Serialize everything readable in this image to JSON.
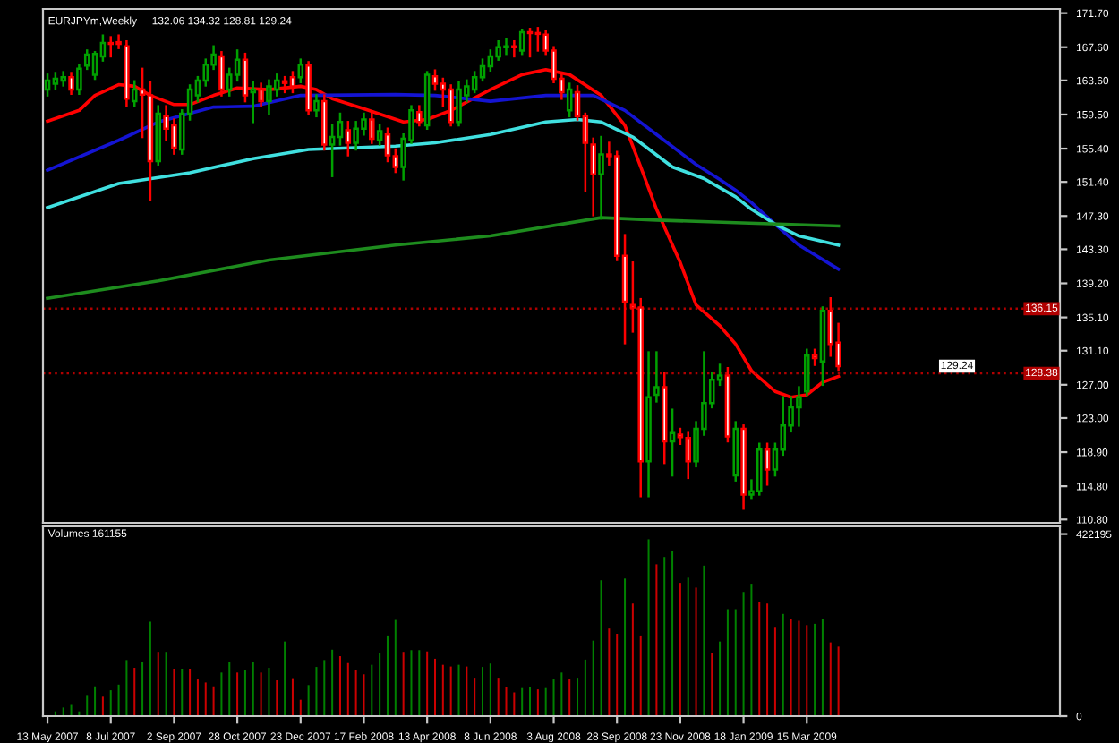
{
  "chart_data": [
    {
      "type": "candlestick",
      "title": "EURJPYm,Weekly",
      "subtitle": "132.06 134.32 128.81 129.24",
      "x": [
        "2007-05-13",
        "2007-05-20",
        "2007-05-27",
        "2007-06-03",
        "2007-06-10",
        "2007-06-17",
        "2007-06-24",
        "2007-07-01",
        "2007-07-08",
        "2007-07-15",
        "2007-07-22",
        "2007-07-29",
        "2007-08-05",
        "2007-08-12",
        "2007-08-19",
        "2007-08-26",
        "2007-09-02",
        "2007-09-09",
        "2007-09-16",
        "2007-09-23",
        "2007-09-30",
        "2007-10-07",
        "2007-10-14",
        "2007-10-21",
        "2007-10-28",
        "2007-11-04",
        "2007-11-11",
        "2007-11-18",
        "2007-11-25",
        "2007-12-02",
        "2007-12-09",
        "2007-12-16",
        "2007-12-23",
        "2007-12-30",
        "2008-01-06",
        "2008-01-13",
        "2008-01-20",
        "2008-01-27",
        "2008-02-03",
        "2008-02-10",
        "2008-02-17",
        "2008-02-24",
        "2008-03-02",
        "2008-03-09",
        "2008-03-16",
        "2008-03-23",
        "2008-03-30",
        "2008-04-06",
        "2008-04-13",
        "2008-04-20",
        "2008-04-27",
        "2008-05-04",
        "2008-05-11",
        "2008-05-18",
        "2008-05-25",
        "2008-06-01",
        "2008-06-08",
        "2008-06-15",
        "2008-06-22",
        "2008-06-29",
        "2008-07-06",
        "2008-07-13",
        "2008-07-20",
        "2008-07-27",
        "2008-08-03",
        "2008-08-10",
        "2008-08-17",
        "2008-08-24",
        "2008-08-31",
        "2008-09-07",
        "2008-09-14",
        "2008-09-21",
        "2008-09-28",
        "2008-10-05",
        "2008-10-12",
        "2008-10-19",
        "2008-10-26",
        "2008-11-02",
        "2008-11-09",
        "2008-11-16",
        "2008-11-23",
        "2008-11-30",
        "2008-12-07",
        "2008-12-14",
        "2008-12-21",
        "2008-12-28",
        "2009-01-04",
        "2009-01-11",
        "2009-01-18",
        "2009-01-25",
        "2009-02-01",
        "2009-02-08",
        "2009-02-15",
        "2009-02-22",
        "2009-03-01",
        "2009-03-08",
        "2009-03-15",
        "2009-03-22",
        "2009-03-29",
        "2009-04-05",
        "2009-04-12"
      ],
      "ohlc": [
        [
          162.5,
          164.3,
          161.8,
          163.6
        ],
        [
          163.2,
          164.5,
          162.6,
          163.8
        ],
        [
          163.6,
          164.6,
          163.0,
          164.0
        ],
        [
          164.0,
          164.5,
          162.0,
          162.5
        ],
        [
          162.5,
          165.5,
          162.0,
          165.0
        ],
        [
          165.4,
          167.2,
          165.0,
          166.7
        ],
        [
          164.3,
          167.0,
          163.8,
          166.8
        ],
        [
          166.5,
          169.0,
          166.0,
          168.1
        ],
        [
          168.1,
          168.8,
          166.5,
          168.0
        ],
        [
          168.2,
          169.0,
          167.5,
          168.0
        ],
        [
          167.7,
          168.3,
          160.5,
          161.4
        ],
        [
          161.1,
          163.5,
          160.5,
          162.5
        ],
        [
          162.5,
          165.0,
          156.8,
          161.9
        ],
        [
          161.8,
          163.4,
          149.2,
          153.9
        ],
        [
          153.9,
          160.5,
          153.5,
          159.6
        ],
        [
          159.3,
          160.5,
          156.5,
          157.8
        ],
        [
          158.2,
          158.9,
          154.8,
          155.5
        ],
        [
          155.3,
          160.0,
          154.8,
          159.6
        ],
        [
          159.6,
          163.0,
          158.9,
          162.5
        ],
        [
          161.8,
          164.0,
          161.1,
          163.6
        ],
        [
          163.6,
          166.1,
          163.0,
          165.5
        ],
        [
          165.5,
          167.7,
          165.0,
          166.7
        ],
        [
          166.5,
          167.0,
          161.8,
          162.5
        ],
        [
          162.5,
          165.0,
          161.8,
          164.3
        ],
        [
          164.3,
          167.2,
          163.6,
          166.1
        ],
        [
          166.1,
          166.8,
          161.1,
          161.8
        ],
        [
          162.2,
          163.4,
          158.6,
          162.5
        ],
        [
          162.5,
          163.2,
          160.5,
          161.1
        ],
        [
          161.1,
          163.6,
          159.6,
          162.9
        ],
        [
          162.5,
          164.3,
          161.8,
          163.6
        ],
        [
          163.5,
          164.0,
          162.2,
          163.3
        ],
        [
          164.0,
          164.6,
          162.2,
          162.9
        ],
        [
          164.0,
          166.1,
          163.4,
          165.5
        ],
        [
          165.4,
          165.8,
          159.6,
          160.0
        ],
        [
          160.0,
          161.8,
          159.3,
          161.1
        ],
        [
          161.1,
          161.8,
          155.3,
          155.9
        ],
        [
          155.9,
          158.2,
          152.1,
          156.8
        ],
        [
          156.8,
          159.6,
          155.9,
          158.6
        ],
        [
          157.6,
          158.6,
          154.6,
          156.1
        ],
        [
          156.1,
          158.6,
          155.3,
          157.8
        ],
        [
          157.8,
          159.6,
          157.1,
          158.9
        ],
        [
          158.9,
          159.6,
          156.1,
          156.6
        ],
        [
          156.4,
          158.2,
          155.9,
          157.5
        ],
        [
          157.1,
          157.8,
          153.9,
          154.6
        ],
        [
          154.5,
          155.3,
          152.6,
          153.2
        ],
        [
          153.2,
          157.1,
          151.7,
          156.6
        ],
        [
          156.4,
          160.5,
          156.1,
          160.0
        ],
        [
          159.8,
          160.5,
          158.2,
          158.6
        ],
        [
          158.2,
          164.6,
          157.8,
          164.3
        ],
        [
          164.1,
          164.8,
          162.5,
          163.2
        ],
        [
          163.2,
          163.8,
          160.5,
          162.5
        ],
        [
          162.5,
          163.0,
          158.2,
          158.6
        ],
        [
          158.6,
          163.4,
          158.2,
          162.5
        ],
        [
          161.8,
          163.6,
          161.1,
          162.9
        ],
        [
          162.5,
          164.6,
          162.2,
          164.0
        ],
        [
          164.0,
          166.1,
          163.6,
          165.3
        ],
        [
          165.3,
          167.2,
          164.8,
          166.5
        ],
        [
          166.5,
          168.3,
          166.1,
          167.6
        ],
        [
          167.6,
          168.6,
          166.8,
          167.7
        ],
        [
          167.7,
          168.3,
          166.5,
          167.6
        ],
        [
          167.2,
          169.7,
          166.8,
          169.4
        ],
        [
          169.4,
          169.8,
          166.5,
          169.3
        ],
        [
          169.3,
          169.9,
          167.2,
          169.2
        ],
        [
          169.1,
          169.5,
          166.8,
          167.2
        ],
        [
          167.2,
          167.6,
          163.4,
          163.8
        ],
        [
          163.8,
          164.3,
          161.4,
          162.2
        ],
        [
          160.0,
          163.2,
          159.3,
          162.5
        ],
        [
          162.2,
          162.9,
          158.9,
          159.3
        ],
        [
          159.3,
          159.6,
          150.3,
          156.1
        ],
        [
          155.9,
          156.6,
          147.4,
          152.3
        ],
        [
          152.3,
          156.8,
          147.0,
          154.7
        ],
        [
          154.7,
          156.1,
          153.5,
          154.5
        ],
        [
          154.5,
          155.0,
          142.0,
          142.5
        ],
        [
          142.5,
          145.0,
          132.0,
          137.0
        ],
        [
          136.6,
          141.7,
          133.4,
          136.3
        ],
        [
          136.3,
          137.3,
          113.6,
          117.8
        ],
        [
          117.8,
          130.9,
          113.6,
          125.5
        ],
        [
          125.8,
          130.9,
          125.0,
          126.7
        ],
        [
          126.7,
          128.4,
          117.6,
          120.2
        ],
        [
          120.2,
          124.0,
          116.1,
          121.2
        ],
        [
          121.0,
          121.7,
          119.9,
          120.7
        ],
        [
          120.6,
          121.2,
          115.8,
          117.8
        ],
        [
          117.8,
          122.5,
          117.2,
          121.7
        ],
        [
          121.7,
          130.9,
          121.0,
          124.8
        ],
        [
          124.8,
          128.4,
          124.3,
          127.6
        ],
        [
          127.6,
          129.4,
          127.0,
          128.1
        ],
        [
          128.1,
          129.0,
          120.2,
          120.8
        ],
        [
          116.1,
          122.5,
          115.5,
          121.7
        ],
        [
          121.7,
          122.1,
          112.1,
          113.8
        ],
        [
          113.8,
          115.5,
          113.4,
          114.2
        ],
        [
          114.2,
          119.9,
          113.8,
          119.2
        ],
        [
          119.2,
          119.9,
          115.0,
          116.8
        ],
        [
          116.8,
          119.9,
          116.1,
          119.2
        ],
        [
          119.2,
          125.5,
          118.6,
          122.1
        ],
        [
          122.1,
          125.5,
          121.4,
          124.3
        ],
        [
          124.3,
          126.7,
          122.1,
          125.5
        ],
        [
          126.2,
          131.2,
          125.8,
          130.5
        ],
        [
          130.5,
          131.2,
          129.4,
          130.2
        ],
        [
          129.8,
          136.3,
          127.0,
          135.9
        ],
        [
          135.9,
          137.4,
          130.5,
          131.9
        ],
        [
          132.06,
          134.32,
          128.81,
          129.24
        ]
      ],
      "colors": [
        "#00a000",
        "#00a000",
        "#00a000",
        "#ff0000",
        "#00a000",
        "#00a000",
        "#00a000",
        "#00a000",
        "#ff0000",
        "#ff0000",
        "#ff0000",
        "#00a000",
        "#ff0000",
        "#ff0000",
        "#00a000",
        "#ff0000",
        "#ff0000",
        "#00a000",
        "#00a000",
        "#00a000",
        "#00a000",
        "#00a000",
        "#ff0000",
        "#00a000",
        "#00a000",
        "#ff0000",
        "#00a000",
        "#ff0000",
        "#00a000",
        "#00a000",
        "#ff0000",
        "#ff0000",
        "#00a000",
        "#ff0000",
        "#00a000",
        "#ff0000",
        "#00a000",
        "#00a000",
        "#ff0000",
        "#00a000",
        "#00a000",
        "#ff0000",
        "#00a000",
        "#ff0000",
        "#ff0000",
        "#00a000",
        "#00a000",
        "#ff0000",
        "#00a000",
        "#ff0000",
        "#ff0000",
        "#ff0000",
        "#00a000",
        "#00a000",
        "#00a000",
        "#00a000",
        "#00a000",
        "#00a000",
        "#00a000",
        "#ff0000",
        "#00a000",
        "#ff0000",
        "#ff0000",
        "#ff0000",
        "#ff0000",
        "#ff0000",
        "#00a000",
        "#ff0000",
        "#ff0000",
        "#ff0000",
        "#00a000",
        "#ff0000",
        "#ff0000",
        "#ff0000",
        "#ff0000",
        "#ff0000",
        "#00a000",
        "#00a000",
        "#ff0000",
        "#00a000",
        "#ff0000",
        "#ff0000",
        "#00a000",
        "#00a000",
        "#00a000",
        "#00a000",
        "#ff0000",
        "#00a000",
        "#ff0000",
        "#00a000",
        "#00a000",
        "#ff0000",
        "#00a000",
        "#00a000",
        "#00a000",
        "#00a000",
        "#00a000",
        "#ff0000",
        "#00a000",
        "#ff0000",
        "#ff0000"
      ],
      "series": [
        {
          "type": "line",
          "color": "#ff0000",
          "x": [
            "2007-05-13",
            "2007-06-10",
            "2007-06-24",
            "2007-07-15",
            "2007-07-29",
            "2007-08-12",
            "2007-09-02",
            "2007-09-16",
            "2007-10-07",
            "2007-10-28",
            "2007-11-25",
            "2007-12-23",
            "2008-01-06",
            "2008-01-20",
            "2008-02-17",
            "2008-03-23",
            "2008-04-13",
            "2008-05-04",
            "2008-06-08",
            "2008-07-06",
            "2008-07-27",
            "2008-08-17",
            "2008-09-14",
            "2008-10-05",
            "2008-10-19",
            "2008-11-02",
            "2008-11-23",
            "2008-12-07",
            "2008-12-28",
            "2009-01-11",
            "2009-01-25",
            "2009-02-15",
            "2009-03-01",
            "2009-03-15",
            "2009-03-29",
            "2009-04-12"
          ],
          "values": [
            158.7,
            160.0,
            161.8,
            163.1,
            162.9,
            161.8,
            160.7,
            160.7,
            161.8,
            162.7,
            162.5,
            162.9,
            162.5,
            161.4,
            160.2,
            158.6,
            158.9,
            160.0,
            162.5,
            164.3,
            164.9,
            164.3,
            161.8,
            158.2,
            153.2,
            148.1,
            141.7,
            136.6,
            134.1,
            131.9,
            128.7,
            126.2,
            125.5,
            125.8,
            127.3,
            128.0
          ]
        },
        {
          "type": "line",
          "color": "#1414d2",
          "x": [
            "2007-05-13",
            "2007-07-15",
            "2007-08-19",
            "2007-10-07",
            "2007-11-11",
            "2007-12-23",
            "2008-03-16",
            "2008-04-20",
            "2008-06-08",
            "2008-07-27",
            "2008-09-07",
            "2008-10-05",
            "2008-11-02",
            "2008-12-07",
            "2008-12-28",
            "2009-01-11",
            "2009-01-25",
            "2009-02-15",
            "2009-03-08",
            "2009-04-12"
          ],
          "values": [
            152.8,
            156.4,
            158.6,
            160.4,
            160.5,
            161.8,
            161.9,
            161.8,
            161.1,
            161.8,
            161.8,
            160.0,
            157.1,
            153.5,
            151.7,
            150.4,
            148.9,
            146.3,
            143.8,
            140.9
          ]
        },
        {
          "type": "line",
          "color": "#40e0e0",
          "x": [
            "2007-05-13",
            "2007-07-15",
            "2007-09-16",
            "2007-11-11",
            "2007-12-30",
            "2008-03-16",
            "2008-04-20",
            "2008-06-08",
            "2008-07-27",
            "2008-08-24",
            "2008-09-14",
            "2008-10-12",
            "2008-11-16",
            "2008-12-14",
            "2009-01-11",
            "2009-01-25",
            "2009-02-15",
            "2009-03-08",
            "2009-04-12"
          ],
          "values": [
            148.3,
            151.2,
            152.5,
            154.2,
            155.3,
            155.7,
            156.1,
            157.1,
            158.6,
            158.9,
            158.6,
            156.8,
            153.2,
            151.8,
            149.6,
            148.1,
            146.3,
            144.9,
            143.8
          ]
        },
        {
          "type": "line",
          "color": "#1e8c1e",
          "x": [
            "2007-05-13",
            "2007-08-19",
            "2007-11-25",
            "2008-03-16",
            "2008-06-08",
            "2008-09-14",
            "2008-11-02",
            "2009-01-11",
            "2009-04-12"
          ],
          "values": [
            137.4,
            139.5,
            142.0,
            143.8,
            144.9,
            147.1,
            146.8,
            146.5,
            146.1
          ]
        }
      ],
      "xlim": [
        "2007-05-09",
        "2009-10-25"
      ],
      "ylim": [
        110.4,
        172.2
      ],
      "yticks": [
        {
          "value": 171.7,
          "label": "171.70"
        },
        {
          "value": 167.6,
          "label": "167.60"
        },
        {
          "value": 163.6,
          "label": "163.60"
        },
        {
          "value": 159.5,
          "label": "159.50"
        },
        {
          "value": 155.4,
          "label": "155.40"
        },
        {
          "value": 151.4,
          "label": "151.40"
        },
        {
          "value": 147.3,
          "label": "147.30"
        },
        {
          "value": 143.3,
          "label": "143.30"
        },
        {
          "value": 139.2,
          "label": "139.20"
        },
        {
          "value": 135.1,
          "label": "135.10"
        },
        {
          "value": 131.1,
          "label": "131.10"
        },
        {
          "value": 127.0,
          "label": "127.00"
        },
        {
          "value": 123.0,
          "label": "123.00"
        },
        {
          "value": 118.9,
          "label": "118.90"
        },
        {
          "value": 114.8,
          "label": "114.80"
        },
        {
          "value": 110.8,
          "label": "110.80"
        }
      ],
      "tick_labels": "y",
      "ref_lines": [
        {
          "axis": "y",
          "value": 136.15,
          "label": "136.15",
          "color": "#b00000",
          "line_style": "dotted"
        },
        {
          "axis": "y",
          "value": 128.38,
          "label": "128.38",
          "color": "#b00000",
          "line_style": "dotted"
        }
      ],
      "annotations": [
        {
          "text": "129.24",
          "y": 129.24
        }
      ]
    },
    {
      "type": "bar",
      "title": "Volumes 161155",
      "x": [
        "2007-05-20",
        "2007-05-27",
        "2007-06-03",
        "2007-06-10",
        "2007-06-17",
        "2007-06-24",
        "2007-07-01",
        "2007-07-08",
        "2007-07-15",
        "2007-07-22",
        "2007-07-29",
        "2007-08-05",
        "2007-08-12",
        "2007-08-19",
        "2007-08-26",
        "2007-09-02",
        "2007-09-09",
        "2007-09-16",
        "2007-09-23",
        "2007-09-30",
        "2007-10-07",
        "2007-10-14",
        "2007-10-21",
        "2007-10-28",
        "2007-11-04",
        "2007-11-11",
        "2007-11-18",
        "2007-11-25",
        "2007-12-02",
        "2007-12-09",
        "2007-12-16",
        "2007-12-23",
        "2007-12-30",
        "2008-01-06",
        "2008-01-13",
        "2008-01-20",
        "2008-01-27",
        "2008-02-03",
        "2008-02-10",
        "2008-02-17",
        "2008-02-24",
        "2008-03-02",
        "2008-03-09",
        "2008-03-16",
        "2008-03-23",
        "2008-03-30",
        "2008-04-06",
        "2008-04-13",
        "2008-04-20",
        "2008-04-27",
        "2008-05-04",
        "2008-05-11",
        "2008-05-18",
        "2008-05-25",
        "2008-06-01",
        "2008-06-08",
        "2008-06-15",
        "2008-06-22",
        "2008-06-29",
        "2008-07-06",
        "2008-07-13",
        "2008-07-20",
        "2008-07-27",
        "2008-08-03",
        "2008-08-10",
        "2008-08-17",
        "2008-08-24",
        "2008-08-31",
        "2008-09-07",
        "2008-09-14",
        "2008-09-21",
        "2008-09-28",
        "2008-10-05",
        "2008-10-12",
        "2008-10-19",
        "2008-10-26",
        "2008-11-02",
        "2008-11-09",
        "2008-11-16",
        "2008-11-23",
        "2008-11-30",
        "2008-12-07",
        "2008-12-14",
        "2008-12-21",
        "2008-12-28",
        "2009-01-04",
        "2009-01-11",
        "2009-01-18",
        "2009-01-25",
        "2009-02-01",
        "2009-02-08",
        "2009-02-15",
        "2009-02-22",
        "2009-03-01",
        "2009-03-08",
        "2009-03-15",
        "2009-03-22",
        "2009-03-29",
        "2009-04-05",
        "2009-04-12"
      ],
      "values": [
        11000,
        20000,
        28000,
        11000,
        49000,
        69000,
        45000,
        60000,
        73000,
        130000,
        112000,
        126000,
        219000,
        149000,
        149000,
        110000,
        110000,
        110000,
        85000,
        78000,
        69000,
        101000,
        126000,
        101000,
        106000,
        126000,
        101000,
        112000,
        83000,
        173000,
        88000,
        38000,
        72000,
        114000,
        130000,
        154000,
        139000,
        123000,
        107000,
        97000,
        119000,
        146000,
        187000,
        223000,
        149000,
        153000,
        153000,
        150000,
        133000,
        119000,
        115000,
        119000,
        115000,
        89000,
        114000,
        122000,
        89000,
        68000,
        55000,
        65000,
        68000,
        62000,
        65000,
        85000,
        101000,
        85000,
        89000,
        131000,
        175000,
        315000,
        203000,
        191000,
        319000,
        261000,
        187000,
        410000,
        352000,
        369000,
        382000,
        309000,
        321000,
        298000,
        349000,
        146000,
        173000,
        248000,
        248000,
        288000,
        307000,
        265000,
        261000,
        207000,
        237000,
        225000,
        221000,
        211000,
        214000,
        226000,
        171000,
        161155
      ],
      "colors": [
        "#008000",
        "#008000",
        "#008000",
        "#008000",
        "#008000",
        "#008000",
        "#cc0000",
        "#008000",
        "#008000",
        "#008000",
        "#cc0000",
        "#008000",
        "#008000",
        "#cc0000",
        "#008000",
        "#cc0000",
        "#008000",
        "#cc0000",
        "#cc0000",
        "#cc0000",
        "#cc0000",
        "#008000",
        "#008000",
        "#cc0000",
        "#008000",
        "#008000",
        "#cc0000",
        "#008000",
        "#cc0000",
        "#008000",
        "#cc0000",
        "#cc0000",
        "#008000",
        "#008000",
        "#008000",
        "#008000",
        "#cc0000",
        "#cc0000",
        "#cc0000",
        "#cc0000",
        "#008000",
        "#008000",
        "#008000",
        "#008000",
        "#cc0000",
        "#008000",
        "#008000",
        "#cc0000",
        "#cc0000",
        "#cc0000",
        "#cc0000",
        "#008000",
        "#cc0000",
        "#cc0000",
        "#008000",
        "#008000",
        "#cc0000",
        "#cc0000",
        "#cc0000",
        "#008000",
        "#008000",
        "#cc0000",
        "#008000",
        "#008000",
        "#008000",
        "#cc0000",
        "#008000",
        "#008000",
        "#008000",
        "#008000",
        "#cc0000",
        "#cc0000",
        "#008000",
        "#cc0000",
        "#cc0000",
        "#008000",
        "#cc0000",
        "#008000",
        "#008000",
        "#cc0000",
        "#008000",
        "#cc0000",
        "#008000",
        "#cc0000",
        "#008000",
        "#008000",
        "#008000",
        "#008000",
        "#008000",
        "#cc0000",
        "#cc0000",
        "#cc0000",
        "#008000",
        "#cc0000",
        "#cc0000",
        "#cc0000",
        "#008000",
        "#008000",
        "#cc0000",
        "#cc0000"
      ],
      "xlim": [
        "2007-05-09",
        "2009-10-25"
      ],
      "ylim": [
        0,
        440000
      ],
      "yticks": [
        0,
        422195
      ],
      "xticks": [
        {
          "value": "2007-05-13",
          "label": "13 May 2007"
        },
        {
          "value": "2007-07-08",
          "label": "8 Jul 2007"
        },
        {
          "value": "2007-09-02",
          "label": "2 Sep 2007"
        },
        {
          "value": "2007-10-28",
          "label": "28 Oct 2007"
        },
        {
          "value": "2007-12-23",
          "label": "23 Dec 2007"
        },
        {
          "value": "2008-02-17",
          "label": "17 Feb 2008"
        },
        {
          "value": "2008-04-13",
          "label": "13 Apr 2008"
        },
        {
          "value": "2008-06-08",
          "label": "8 Jun 2008"
        },
        {
          "value": "2008-08-03",
          "label": "3 Aug 2008"
        },
        {
          "value": "2008-09-28",
          "label": "28 Sep 2008"
        },
        {
          "value": "2008-11-23",
          "label": "23 Nov 2008"
        },
        {
          "value": "2009-01-18",
          "label": "18 Jan 2009"
        },
        {
          "value": "2009-03-15",
          "label": "15 Mar 2009"
        }
      ]
    }
  ]
}
